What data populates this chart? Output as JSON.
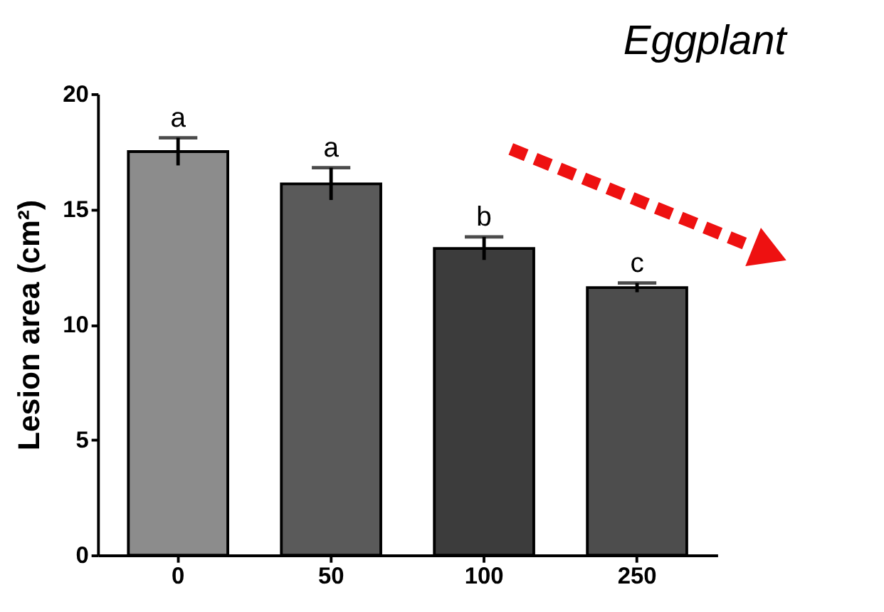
{
  "chart_data": {
    "type": "bar",
    "title": "Eggplant",
    "ylabel": "Lesion area (cm²)",
    "categories": [
      "0",
      "50",
      "100",
      "250"
    ],
    "values": [
      17.5,
      16.1,
      13.3,
      11.6
    ],
    "errors": [
      0.6,
      0.7,
      0.5,
      0.2
    ],
    "colors": [
      "#8c8c8c",
      "#5a5a5a",
      "#3c3c3c",
      "#4d4d4d"
    ],
    "ylim": [
      0,
      20
    ],
    "yticks": [
      0,
      5,
      10,
      15,
      20
    ],
    "grid": false,
    "legend": false,
    "annotations": [
      {
        "text": "a",
        "x": "0",
        "y": 18.1
      },
      {
        "text": "a",
        "x": "50",
        "y": 16.8
      },
      {
        "text": "b",
        "x": "100",
        "y": 13.8
      },
      {
        "text": "c",
        "x": "250",
        "y": 11.8
      }
    ]
  }
}
